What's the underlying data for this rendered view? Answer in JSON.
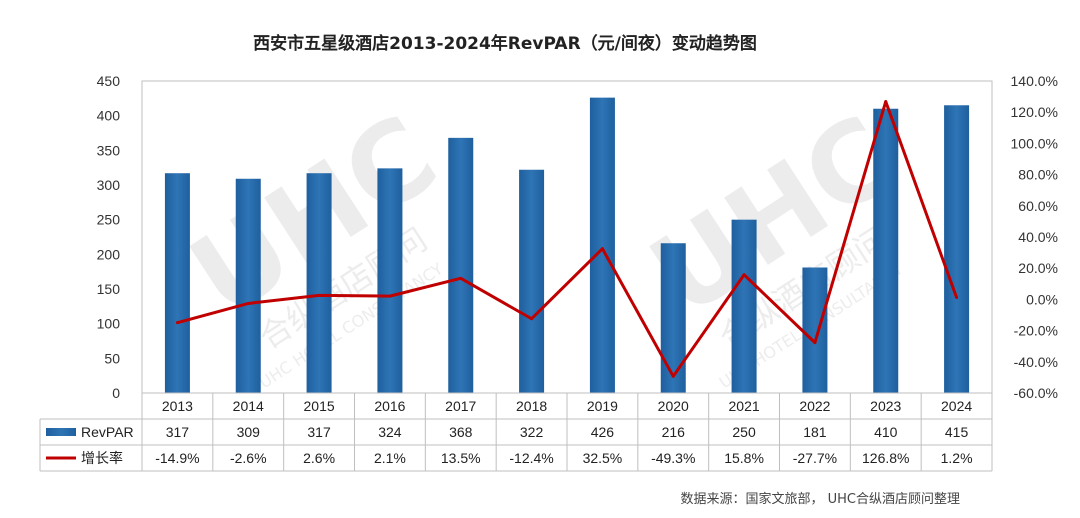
{
  "chart_data": {
    "type": "bar",
    "title": "西安市五星级酒店2013-2024年RevPAR（元/间夜）变动趋势图",
    "categories": [
      "2013",
      "2014",
      "2015",
      "2016",
      "2017",
      "2018",
      "2019",
      "2020",
      "2021",
      "2022",
      "2023",
      "2024"
    ],
    "series": [
      {
        "name": "RevPAR",
        "type": "bar",
        "axis": "left",
        "color": "#2e75b6",
        "values": [
          317,
          309,
          317,
          324,
          368,
          322,
          426,
          216,
          250,
          181,
          410,
          415
        ],
        "labels": [
          "317",
          "309",
          "317",
          "324",
          "368",
          "322",
          "426",
          "216",
          "250",
          "181",
          "410",
          "415"
        ]
      },
      {
        "name": "增长率",
        "type": "line",
        "axis": "right",
        "color": "#c00000",
        "values": [
          -14.9,
          -2.6,
          2.6,
          2.1,
          13.5,
          -12.4,
          32.5,
          -49.3,
          15.8,
          -27.7,
          126.8,
          1.2
        ],
        "labels": [
          "-14.9%",
          "-2.6%",
          "2.6%",
          "2.1%",
          "13.5%",
          "-12.4%",
          "32.5%",
          "-49.3%",
          "15.8%",
          "-27.7%",
          "126.8%",
          "1.2%"
        ]
      }
    ],
    "y_left": {
      "lim": [
        0,
        450
      ],
      "ticks": [
        "0",
        "50",
        "100",
        "150",
        "200",
        "250",
        "300",
        "350",
        "400",
        "450"
      ]
    },
    "y_right": {
      "lim": [
        -60,
        140
      ],
      "ticks": [
        "-60.0%",
        "-40.0%",
        "-20.0%",
        "0.0%",
        "20.0%",
        "40.0%",
        "60.0%",
        "80.0%",
        "100.0%",
        "120.0%",
        "140.0%"
      ]
    },
    "grid": false,
    "legend": "data-table-bottom"
  },
  "watermark": {
    "logo": "UHC",
    "cn": "合纵酒店顾问",
    "en": "UHC HOTEL CONSULTANCY"
  },
  "source": "数据来源：国家文旅部， UHC合纵酒店顾问整理"
}
